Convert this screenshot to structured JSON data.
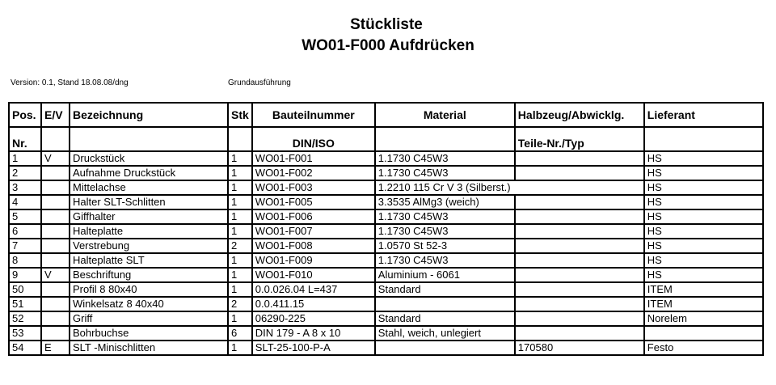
{
  "title": "Stückliste",
  "subtitle": "WO01-F000 Aufdrücken",
  "version": "Version: 0.1, Stand 18.08.08/dng",
  "variant": "Grundausführung",
  "header1": [
    "Pos.",
    "E/V",
    "Bezeichnung",
    "Stk",
    "Bauteilnummer",
    "Material",
    "Halbzeug/Abwicklg.",
    "Lieferant"
  ],
  "header2": [
    "Nr.",
    "",
    "",
    "",
    "DIN/ISO",
    "",
    "Teile-Nr./Typ",
    ""
  ],
  "rows": [
    [
      "1",
      "V",
      "Druckstück",
      "1",
      "WO01-F001",
      "1.1730 C45W3",
      "",
      "HS"
    ],
    [
      "2",
      "",
      "Aufnahme Druckstück",
      "1",
      "WO01-F002",
      "1.1730 C45W3",
      "",
      "HS"
    ],
    [
      "3",
      "",
      "Mittelachse",
      "1",
      "WO01-F003",
      "1.2210 115 Cr V 3 (Silberst.)",
      "",
      "HS"
    ],
    [
      "4",
      "",
      "Halter SLT-Schlitten",
      "1",
      "WO01-F005",
      "3.3535 AlMg3 (weich)",
      "",
      "HS"
    ],
    [
      "5",
      "",
      "Giffhalter",
      "1",
      "WO01-F006",
      "1.1730 C45W3",
      "",
      "HS"
    ],
    [
      "6",
      "",
      "Halteplatte",
      "1",
      "WO01-F007",
      "1.1730 C45W3",
      "",
      "HS"
    ],
    [
      "7",
      "",
      "Verstrebung",
      "2",
      "WO01-F008",
      "1.0570 St 52-3",
      "",
      "HS"
    ],
    [
      "8",
      "",
      "Halteplatte SLT",
      "1",
      "WO01-F009",
      "1.1730 C45W3",
      "",
      "HS"
    ],
    [
      "9",
      "V",
      "Beschriftung",
      "1",
      "WO01-F010",
      "Aluminium - 6061",
      "",
      "HS"
    ],
    [
      "50",
      "",
      "Profil 8 80x40",
      "1",
      "0.0.026.04 L=437",
      "Standard",
      "",
      "ITEM"
    ],
    [
      "51",
      "",
      "Winkelsatz 8 40x40",
      "2",
      "0.0.411.15",
      "",
      "",
      "ITEM"
    ],
    [
      "52",
      "",
      "Griff",
      "1",
      "06290-225",
      "Standard",
      "",
      "Norelem"
    ],
    [
      "53",
      "",
      "Bohrbuchse",
      "6",
      "DIN 179 - A 8 x 10",
      "Stahl, weich, unlegiert",
      "",
      ""
    ],
    [
      "54",
      "E",
      "SLT -Minischlitten",
      "1",
      "SLT-25-100-P-A",
      "",
      "170580",
      "Festo"
    ]
  ]
}
